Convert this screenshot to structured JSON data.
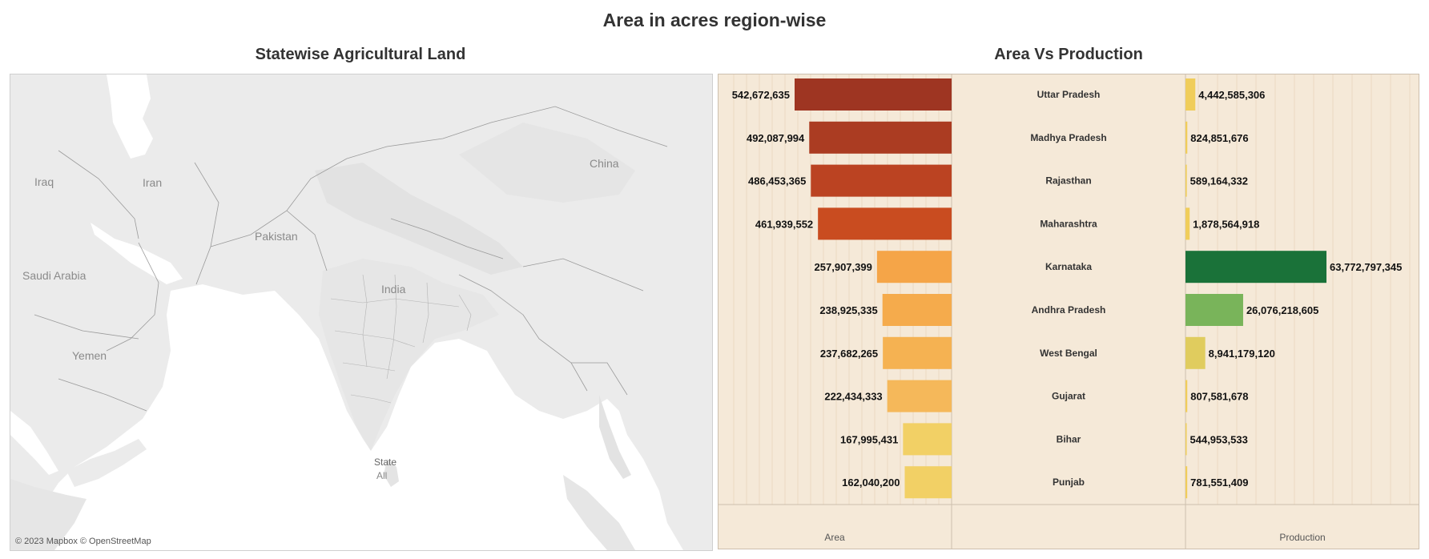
{
  "dashboard": {
    "title": "Area in acres region-wise"
  },
  "map": {
    "title": "Statewise Agricultural Land",
    "labels": {
      "iraq": "Iraq",
      "iran": "Iran",
      "china": "China",
      "pakistan": "Pakistan",
      "saudi": "Saudi Arabia",
      "india": "India",
      "yemen": "Yemen"
    },
    "legend": {
      "title": "State",
      "value": "All"
    },
    "attribution": "© 2023 Mapbox © OpenStreetMap"
  },
  "chart_data": {
    "type": "bar",
    "title": "Area Vs Production",
    "categories": [
      "Uttar Pradesh",
      "Madhya Pradesh",
      "Rajasthan",
      "Maharashtra",
      "Karnataka",
      "Andhra Pradesh",
      "West Bengal",
      "Gujarat",
      "Bihar",
      "Punjab"
    ],
    "series": [
      {
        "name": "Area",
        "values": [
          542672635,
          492087994,
          486453365,
          461939552,
          257907399,
          238925335,
          237682265,
          222434333,
          167995431,
          162040200
        ],
        "labels": [
          "542,672,635",
          "492,087,994",
          "486,453,365",
          "461,939,552",
          "257,907,399",
          "238,925,335",
          "237,682,265",
          "222,434,333",
          "167,995,431",
          "162,040,200"
        ],
        "colors": [
          "#9e3522",
          "#ab3c22",
          "#bb4322",
          "#c94c20",
          "#f5a548",
          "#f5ab4c",
          "#f5b252",
          "#f5b85a",
          "#f2d065",
          "#f2d065"
        ]
      },
      {
        "name": "Production",
        "values": [
          4442585306,
          824851676,
          589164332,
          1878564918,
          63772797345,
          26076218605,
          8941179120,
          807581678,
          544953533,
          781551409
        ],
        "labels": [
          "4,442,585,306",
          "824,851,676",
          "589,164,332",
          "1,878,564,918",
          "63,772,797,345",
          "26,076,218,605",
          "8,941,179,120",
          "807,581,678",
          "544,953,533",
          "781,551,409"
        ],
        "colors": [
          "#f0cd5a",
          "#f0cd5a",
          "#f0cd5a",
          "#f0cd5a",
          "#1a7239",
          "#79b45a",
          "#e0cc5e",
          "#f0cd5a",
          "#f0cd5a",
          "#f0cd5a"
        ]
      }
    ],
    "xlabel_left": "Area",
    "xlabel_right": "Production",
    "xlim_area": [
      0,
      542672635
    ],
    "xlim_production": [
      0,
      63772797345
    ],
    "background": "#f5e9d8"
  }
}
